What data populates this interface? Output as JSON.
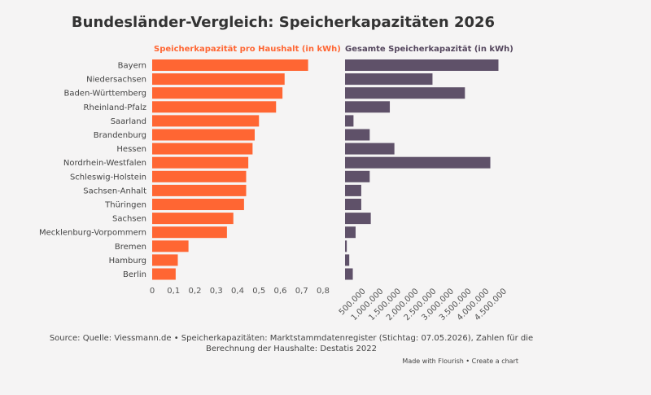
{
  "title": "Bundesländer-Vergleich: Speicherkapazitäten 2026",
  "source_line1": "Source: Quelle: Viessmann.de • Speicherkapazitäten: Marktstammdatenregister (Stichtag: 07.05.2026), Zahlen für die",
  "source_line2": "Berechnung der Haushalte: Destatis 2022",
  "made_with": "Made with Flourish • Create a chart",
  "colors": {
    "left": "#ff6633",
    "right": "#5f5169",
    "background": "#f5f4f4"
  },
  "chart_data": [
    {
      "type": "bar",
      "orientation": "horizontal",
      "title": "Speicherkapazität pro Haushalt (in kWh)",
      "categories": [
        "Bayern",
        "Niedersachsen",
        "Baden-Württemberg",
        "Rheinland-Pfalz",
        "Saarland",
        "Brandenburg",
        "Hessen",
        "Nordrhein-Westfalen",
        "Schleswig-Holstein",
        "Sachsen-Anhalt",
        "Thüringen",
        "Sachsen",
        "Mecklenburg-Vorpommern",
        "Bremen",
        "Hamburg",
        "Berlin"
      ],
      "values": [
        0.73,
        0.62,
        0.61,
        0.58,
        0.5,
        0.48,
        0.47,
        0.45,
        0.44,
        0.44,
        0.43,
        0.38,
        0.35,
        0.17,
        0.12,
        0.11
      ],
      "xlim": [
        0,
        0.8
      ],
      "ticks": [
        "0",
        "0,1",
        "0,2",
        "0,3",
        "0,4",
        "0,5",
        "0,6",
        "0,7",
        "0,8"
      ],
      "tick_values": [
        0,
        0.1,
        0.2,
        0.3,
        0.4,
        0.5,
        0.6,
        0.7,
        0.8
      ]
    },
    {
      "type": "bar",
      "orientation": "horizontal",
      "title": "Gesamte Speicherkapazität (in kWh)",
      "categories": [
        "Bayern",
        "Niedersachsen",
        "Baden-Württemberg",
        "Rheinland-Pfalz",
        "Saarland",
        "Brandenburg",
        "Hessen",
        "Nordrhein-Westfalen",
        "Schleswig-Holstein",
        "Sachsen-Anhalt",
        "Thüringen",
        "Sachsen",
        "Mecklenburg-Vorpommern",
        "Bremen",
        "Hamburg",
        "Berlin"
      ],
      "values": [
        4350000,
        2480000,
        3400000,
        1270000,
        240000,
        700000,
        1400000,
        4120000,
        700000,
        460000,
        460000,
        730000,
        300000,
        50000,
        120000,
        220000
      ],
      "xlim": [
        0,
        4500000
      ],
      "ticks": [
        "500.000",
        "1.000.000",
        "1.500.000",
        "2.000.000",
        "2.500.000",
        "3.000.000",
        "3.500.000",
        "4.000.000",
        "4.500.000"
      ],
      "tick_values": [
        500000,
        1000000,
        1500000,
        2000000,
        2500000,
        3000000,
        3500000,
        4000000,
        4500000
      ]
    }
  ]
}
